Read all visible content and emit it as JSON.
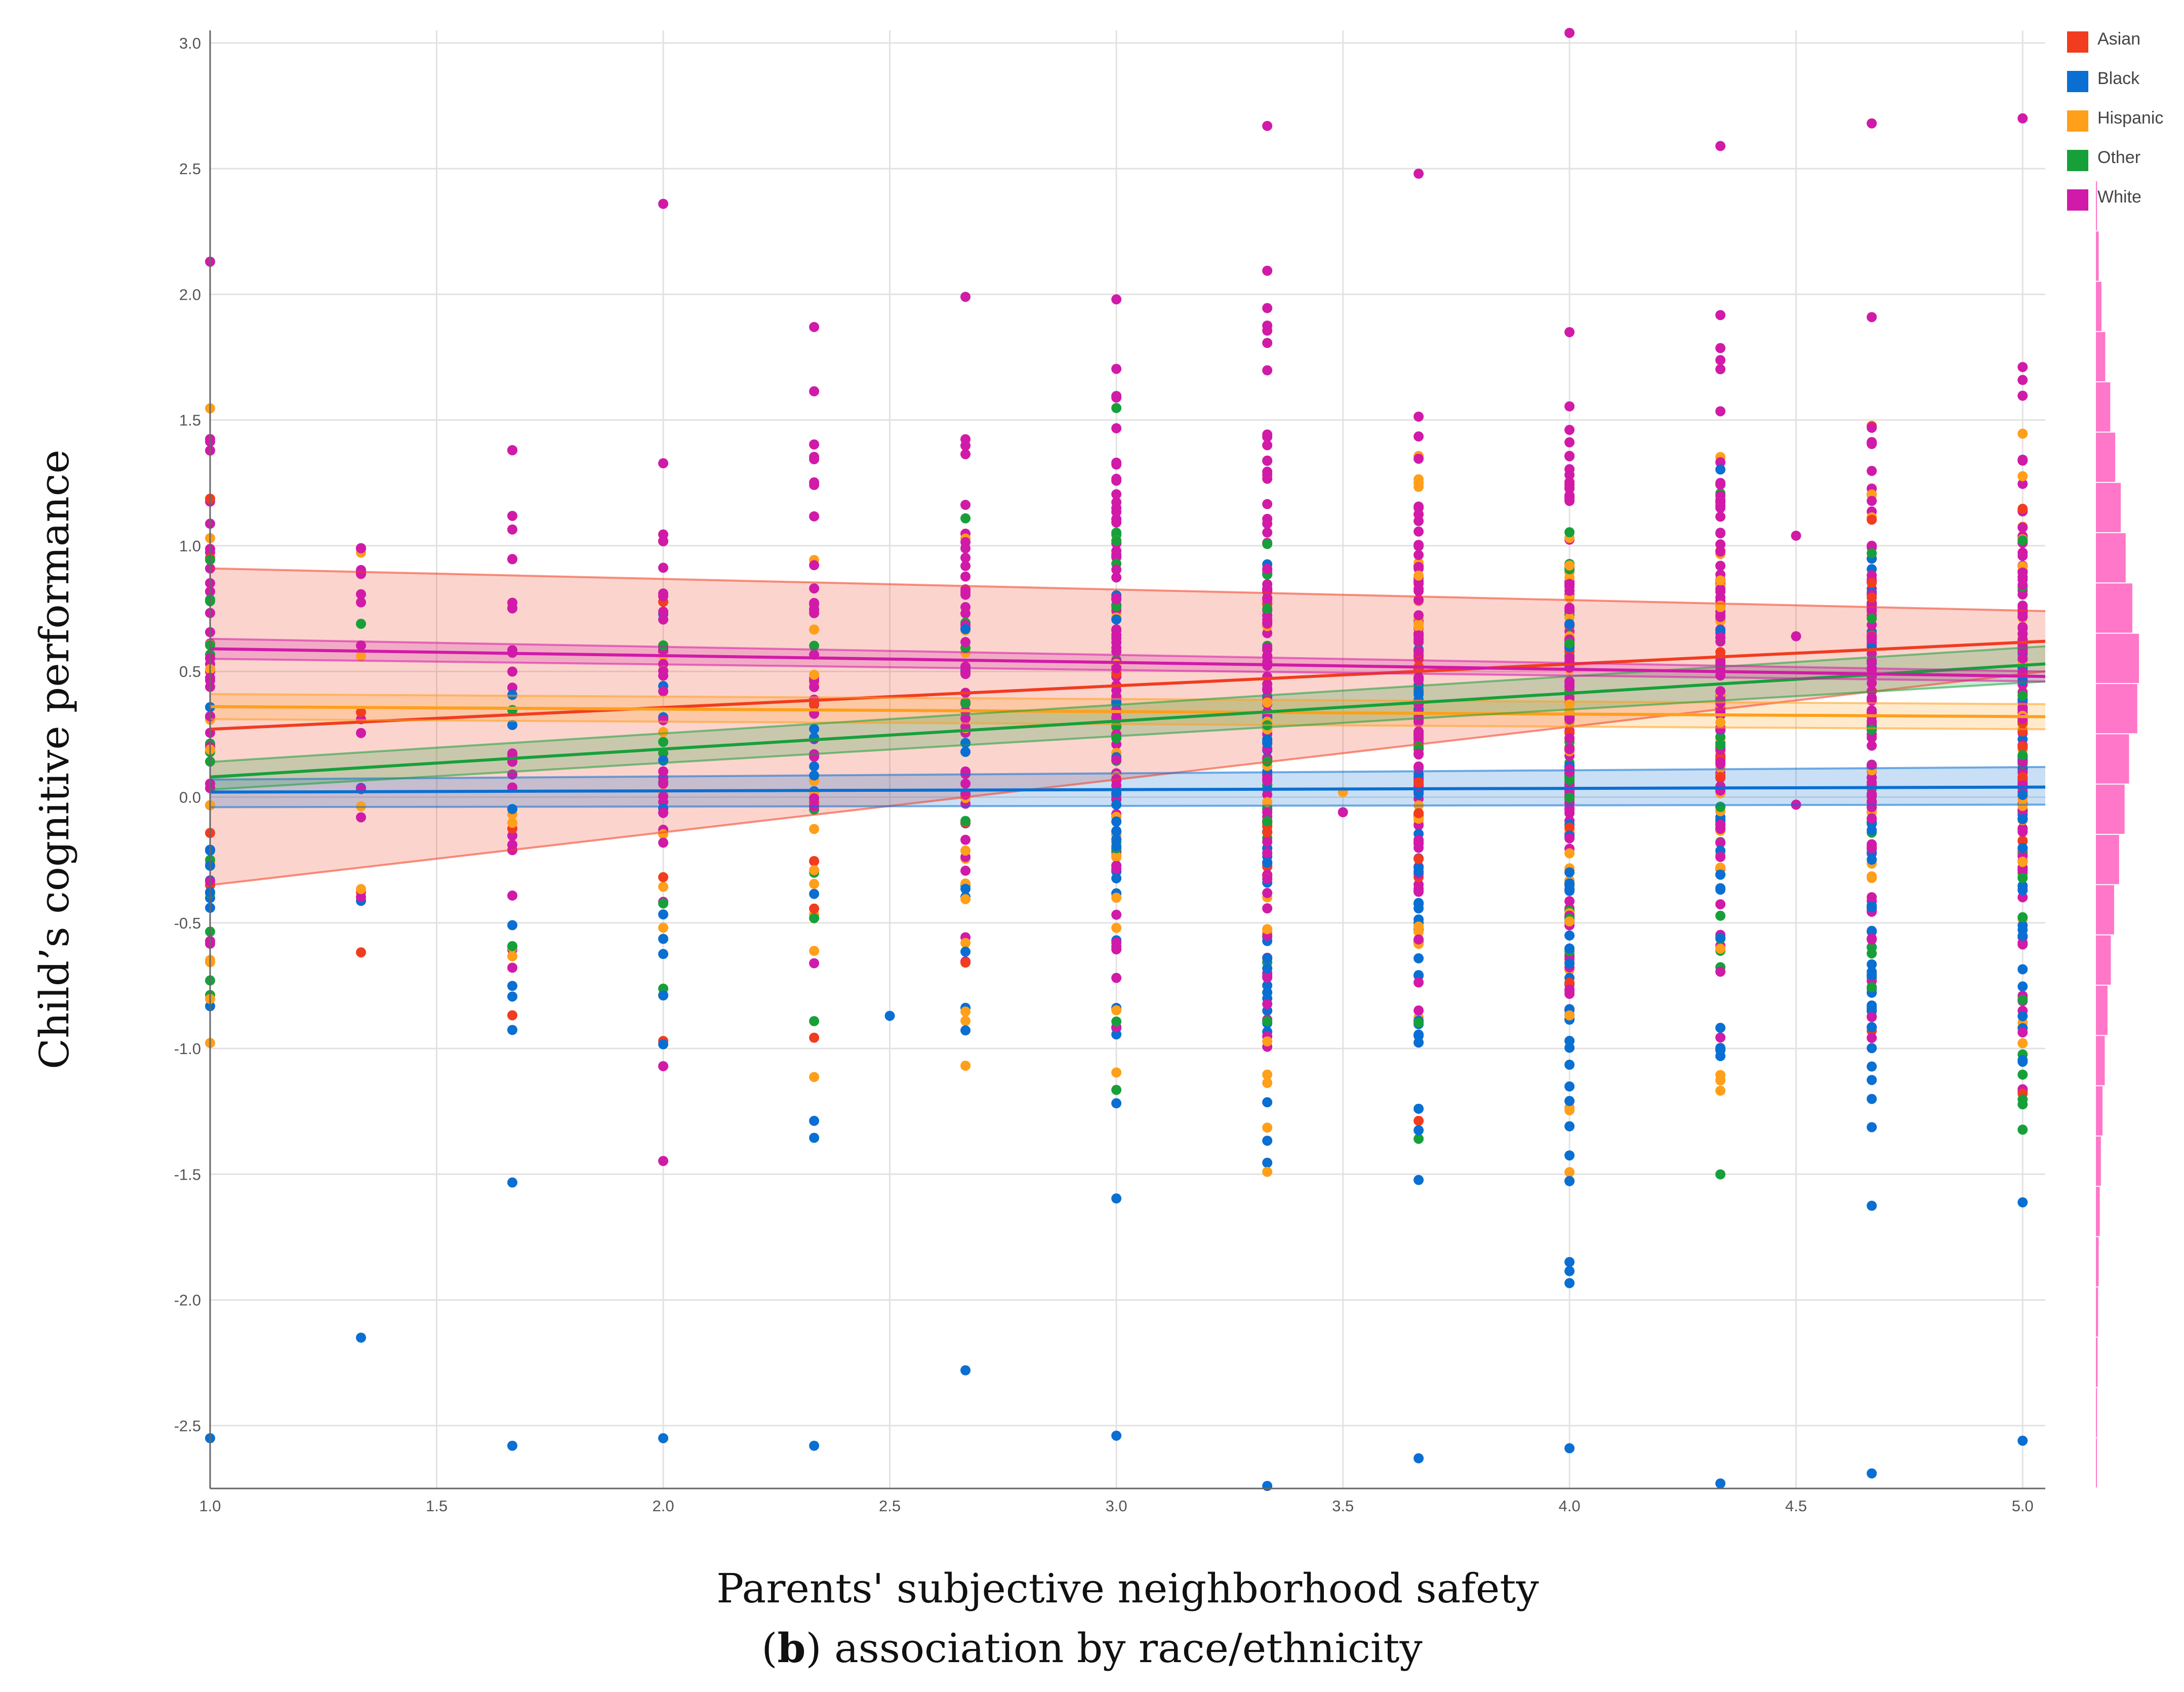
{
  "caption": {
    "letter": "b",
    "text": ") association by race/ethnicity",
    "open": "("
  },
  "colors": {
    "Asian": "#f23c1f",
    "Black": "#0a6fd2",
    "Hispanic": "#ff9f1a",
    "Other": "#17a03a",
    "White": "#d11aa8",
    "grid": "#e2e2e2",
    "axis": "#666666",
    "histogram": "#ff5fc0"
  },
  "chart_data": {
    "type": "scatter",
    "title": "",
    "xlabel": "Parents' subjective neighborhood safety",
    "ylabel": "Child’s cognitive performance",
    "xlim": [
      1.0,
      5.05
    ],
    "ylim": [
      -2.75,
      3.05
    ],
    "xticks": [
      "1.0",
      "1.5",
      "2.0",
      "2.5",
      "3.0",
      "3.5",
      "4.0",
      "4.5",
      "5.0"
    ],
    "yticks": [
      "3.0",
      "2.5",
      "2.0",
      "1.5",
      "1.0",
      "0.5",
      "0.0",
      "-0.5",
      "-1.0",
      "-1.5",
      "-2.0",
      "-2.5"
    ],
    "grid": true,
    "legend_position": "top-right",
    "legend": [
      "Asian",
      "Black",
      "Hispanic",
      "Other",
      "White"
    ],
    "x_levels": [
      1.0,
      1.333,
      1.667,
      2.0,
      2.333,
      2.667,
      3.0,
      3.333,
      3.667,
      4.0,
      4.333,
      4.667,
      5.0
    ],
    "column_ranges": [
      {
        "x": 1.0,
        "ymin": -2.55,
        "ymax": 2.13
      },
      {
        "x": 1.333,
        "ymin": -2.15,
        "ymax": 0.99
      },
      {
        "x": 1.667,
        "ymin": -2.58,
        "ymax": 1.38
      },
      {
        "x": 2.0,
        "ymin": -2.55,
        "ymax": 2.36
      },
      {
        "x": 2.333,
        "ymin": -2.58,
        "ymax": 1.87
      },
      {
        "x": 2.667,
        "ymin": -2.28,
        "ymax": 1.99
      },
      {
        "x": 3.0,
        "ymin": -2.54,
        "ymax": 1.98
      },
      {
        "x": 3.333,
        "ymin": -2.74,
        "ymax": 2.67
      },
      {
        "x": 3.667,
        "ymin": -2.63,
        "ymax": 2.48
      },
      {
        "x": 4.0,
        "ymin": -2.59,
        "ymax": 3.04
      },
      {
        "x": 4.333,
        "ymin": -2.73,
        "ymax": 2.59
      },
      {
        "x": 4.667,
        "ymin": -2.69,
        "ymax": 2.68
      },
      {
        "x": 5.0,
        "ymin": -2.56,
        "ymax": 2.7
      }
    ],
    "outliers": [
      {
        "x": 2.5,
        "y": -0.87,
        "group": "Black"
      },
      {
        "x": 3.5,
        "y": 0.02,
        "group": "Hispanic"
      },
      {
        "x": 3.5,
        "y": -0.06,
        "group": "White"
      },
      {
        "x": 4.5,
        "y": 1.04,
        "group": "White"
      },
      {
        "x": 4.5,
        "y": 0.64,
        "group": "White"
      },
      {
        "x": 4.5,
        "y": -0.03,
        "group": "White"
      }
    ],
    "series": [
      {
        "name": "Asian",
        "fit": [
          0.27,
          0.62
        ],
        "ci_lower": [
          -0.35,
          0.5
        ],
        "ci_upper": [
          0.91,
          0.74
        ]
      },
      {
        "name": "Black",
        "fit": [
          0.02,
          0.04
        ],
        "ci_lower": [
          -0.04,
          -0.03
        ],
        "ci_upper": [
          0.07,
          0.12
        ]
      },
      {
        "name": "Hispanic",
        "fit": [
          0.36,
          0.32
        ],
        "ci_lower": [
          0.31,
          0.27
        ],
        "ci_upper": [
          0.41,
          0.37
        ]
      },
      {
        "name": "Other",
        "fit": [
          0.08,
          0.53
        ],
        "ci_lower": [
          0.03,
          0.46
        ],
        "ci_upper": [
          0.14,
          0.6
        ]
      },
      {
        "name": "White",
        "fit": [
          0.59,
          0.48
        ],
        "ci_lower": [
          0.55,
          0.46
        ],
        "ci_upper": [
          0.63,
          0.5
        ]
      }
    ],
    "marginal_histogram": {
      "bins": [
        -2.75,
        -2.55,
        -2.35,
        -2.15,
        -1.95,
        -1.75,
        -1.55,
        -1.35,
        -1.15,
        -0.95,
        -0.75,
        -0.55,
        -0.35,
        -0.15,
        0.05,
        0.25,
        0.45,
        0.65,
        0.85,
        1.05,
        1.25,
        1.45,
        1.65,
        1.85,
        2.05,
        2.25
      ],
      "counts": [
        1,
        2,
        3,
        4,
        5,
        7,
        9,
        12,
        16,
        21,
        27,
        33,
        42,
        52,
        60,
        75,
        78,
        66,
        54,
        45,
        35,
        26,
        17,
        10,
        5,
        2
      ]
    }
  }
}
